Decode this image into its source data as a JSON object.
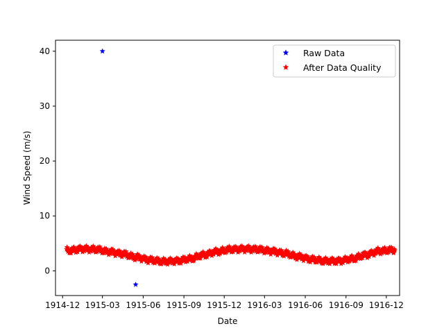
{
  "chart_data": {
    "type": "scatter",
    "xlabel": "Date",
    "ylabel": "Wind Speed (m/s)",
    "xlim": [
      "1914-11-15",
      "1916-12-31"
    ],
    "ylim": [
      -4.5,
      42
    ],
    "x_ticks": [
      "1914-12",
      "1915-03",
      "1915-06",
      "1915-09",
      "1915-12",
      "1916-03",
      "1916-06",
      "1916-09",
      "1916-12"
    ],
    "y_ticks": [
      0,
      10,
      20,
      30,
      40
    ],
    "legend": {
      "position": "top-right"
    },
    "grid": false,
    "series": [
      {
        "name": "Raw Data",
        "color": "#0000ff",
        "marker": "star",
        "points": [
          {
            "x": "1915-03-01",
            "y": 40.0
          },
          {
            "x": "1915-05-15",
            "y": -2.5
          }
        ]
      },
      {
        "name": "After Data Quality",
        "color": "#ff0000",
        "marker": "star",
        "trend": [
          {
            "x": "1914-12-15",
            "y": 3.7
          },
          {
            "x": "1915-01-15",
            "y": 4.0
          },
          {
            "x": "1915-02-15",
            "y": 3.9
          },
          {
            "x": "1915-03-15",
            "y": 3.5
          },
          {
            "x": "1915-04-15",
            "y": 3.1
          },
          {
            "x": "1915-05-15",
            "y": 2.5
          },
          {
            "x": "1915-06-15",
            "y": 2.0
          },
          {
            "x": "1915-07-15",
            "y": 1.7
          },
          {
            "x": "1915-08-15",
            "y": 1.8
          },
          {
            "x": "1915-09-15",
            "y": 2.2
          },
          {
            "x": "1915-10-15",
            "y": 2.9
          },
          {
            "x": "1915-11-15",
            "y": 3.5
          },
          {
            "x": "1915-12-15",
            "y": 3.9
          },
          {
            "x": "1916-01-15",
            "y": 4.0
          },
          {
            "x": "1916-02-15",
            "y": 3.9
          },
          {
            "x": "1916-03-15",
            "y": 3.6
          },
          {
            "x": "1916-04-15",
            "y": 3.2
          },
          {
            "x": "1916-05-15",
            "y": 2.6
          },
          {
            "x": "1916-06-15",
            "y": 2.1
          },
          {
            "x": "1916-07-15",
            "y": 1.8
          },
          {
            "x": "1916-08-15",
            "y": 1.8
          },
          {
            "x": "1916-09-15",
            "y": 2.2
          },
          {
            "x": "1916-10-15",
            "y": 2.9
          },
          {
            "x": "1916-11-15",
            "y": 3.6
          },
          {
            "x": "1916-12-15",
            "y": 3.8
          }
        ]
      }
    ]
  }
}
